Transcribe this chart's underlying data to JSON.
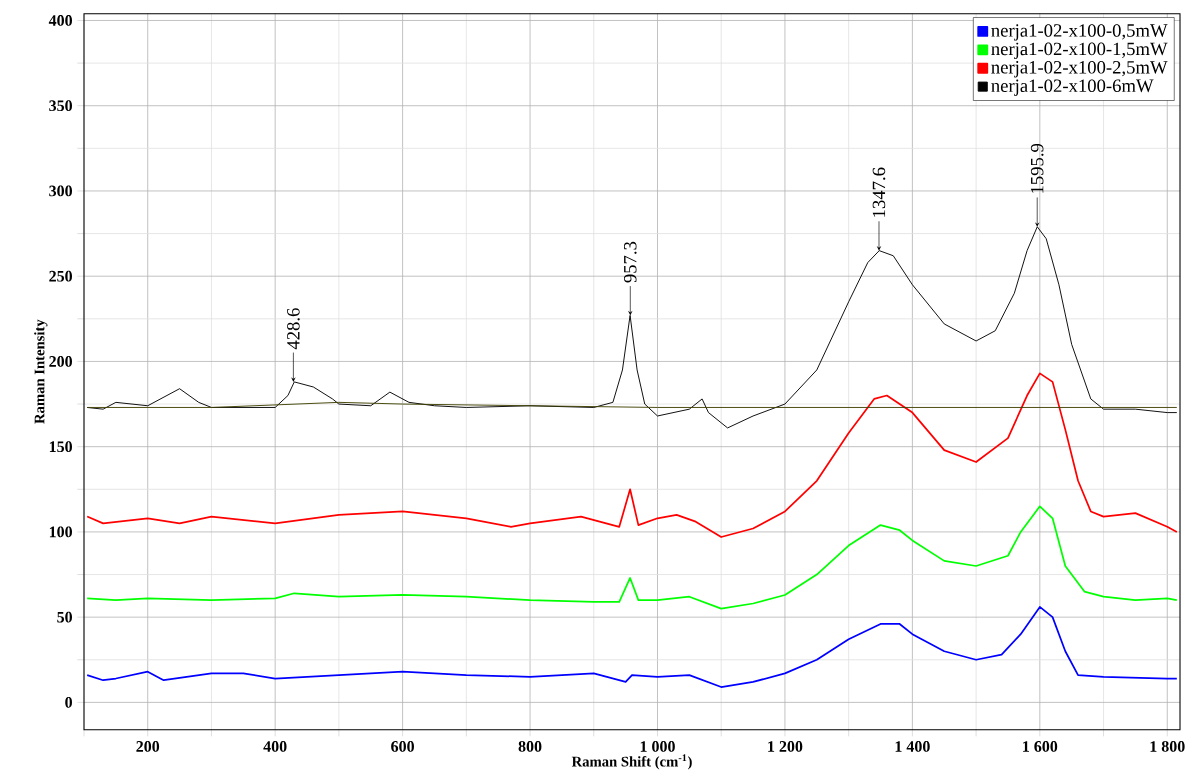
{
  "chart_data": {
    "type": "line",
    "xlabel": "Raman Shift (cm$^{-1}$)",
    "ylabel": "Raman Intensity",
    "xlim": [
      100,
      1820
    ],
    "ylim": [
      -16,
      404
    ],
    "xticks": [
      {
        "value": 100,
        "label": null
      },
      200,
      {
        "value": 300,
        "label": null
      },
      400,
      {
        "value": 500,
        "label": null
      },
      600,
      {
        "value": 700,
        "label": null
      },
      800,
      {
        "value": 900,
        "label": null
      },
      {
        "value": 1000,
        "label": "1 000"
      },
      {
        "value": 1100,
        "label": null
      },
      {
        "value": 1200,
        "label": "1 200"
      },
      {
        "value": 1300,
        "label": null
      },
      {
        "value": 1400,
        "label": "1 400"
      },
      {
        "value": 1500,
        "label": null
      },
      {
        "value": 1600,
        "label": "1 600"
      },
      {
        "value": 1700,
        "label": null
      },
      {
        "value": 1800,
        "label": "1 800"
      }
    ],
    "yticks": [
      0,
      {
        "value": 25,
        "label": null
      },
      50,
      {
        "value": 75,
        "label": null
      },
      100,
      {
        "value": 125,
        "label": null
      },
      150,
      {
        "value": 175,
        "label": null
      },
      200,
      {
        "value": 225,
        "label": null
      },
      250,
      {
        "value": 275,
        "label": null
      },
      300,
      {
        "value": 325,
        "label": null
      },
      350,
      {
        "value": 375,
        "label": null
      },
      400
    ],
    "grid": true,
    "legend": "top right",
    "series": [
      {
        "name": "nerja1-02-x100-0,5mW",
        "color": "#0000ff",
        "x": [
          105,
          130,
          150,
          200,
          225,
          300,
          350,
          400,
          450,
          500,
          550,
          600,
          700,
          800,
          900,
          950,
          960,
          1000,
          1050,
          1100,
          1150,
          1200,
          1250,
          1300,
          1350,
          1380,
          1400,
          1450,
          1500,
          1540,
          1570,
          1600,
          1620,
          1640,
          1660,
          1700,
          1800,
          1815
        ],
        "values": [
          16,
          13,
          14,
          18,
          13,
          17,
          17,
          14,
          15,
          16,
          17,
          18,
          16,
          15,
          17,
          12,
          16,
          15,
          16,
          9,
          12,
          17,
          25,
          37,
          46,
          46,
          40,
          30,
          25,
          28,
          40,
          56,
          50,
          30,
          16,
          15,
          14,
          14
        ]
      },
      {
        "name": "nerja1-02-x100-1,5mW",
        "color": "#00ff00",
        "x": [
          105,
          150,
          200,
          300,
          400,
          430,
          500,
          600,
          700,
          800,
          900,
          940,
          957,
          970,
          1000,
          1050,
          1100,
          1150,
          1200,
          1250,
          1300,
          1350,
          1380,
          1400,
          1450,
          1500,
          1550,
          1570,
          1600,
          1620,
          1640,
          1670,
          1700,
          1750,
          1800,
          1815
        ],
        "values": [
          61,
          60,
          61,
          60,
          61,
          64,
          62,
          63,
          62,
          60,
          59,
          59,
          73,
          60,
          60,
          62,
          55,
          58,
          63,
          75,
          92,
          104,
          101,
          95,
          83,
          80,
          86,
          100,
          115,
          108,
          80,
          65,
          62,
          60,
          61,
          60
        ]
      },
      {
        "name": "nerja1-02-x100-2,5mW",
        "color": "#ff0000",
        "x": [
          105,
          130,
          200,
          250,
          300,
          400,
          500,
          600,
          700,
          770,
          800,
          880,
          940,
          957,
          970,
          1000,
          1030,
          1060,
          1100,
          1150,
          1200,
          1250,
          1300,
          1340,
          1360,
          1400,
          1450,
          1500,
          1550,
          1580,
          1600,
          1620,
          1640,
          1660,
          1680,
          1700,
          1750,
          1800,
          1815
        ],
        "values": [
          109,
          105,
          108,
          105,
          109,
          105,
          110,
          112,
          108,
          103,
          105,
          109,
          103,
          125,
          104,
          108,
          110,
          106,
          97,
          102,
          112,
          130,
          158,
          178,
          180,
          170,
          148,
          141,
          155,
          180,
          193,
          188,
          160,
          130,
          112,
          109,
          111,
          103,
          100
        ]
      },
      {
        "name": "nerja1-02-x100-6mW",
        "color": "#000000",
        "x": [
          105,
          130,
          150,
          200,
          250,
          280,
          300,
          400,
          420,
          430,
          460,
          490,
          500,
          550,
          580,
          610,
          650,
          700,
          800,
          900,
          930,
          945,
          957,
          968,
          980,
          1000,
          1050,
          1070,
          1080,
          1110,
          1150,
          1200,
          1250,
          1300,
          1330,
          1348,
          1370,
          1400,
          1450,
          1500,
          1530,
          1560,
          1580,
          1596,
          1610,
          1630,
          1650,
          1680,
          1700,
          1750,
          1800,
          1815
        ],
        "values": [
          173,
          172,
          176,
          174,
          184,
          176,
          173,
          173,
          180,
          188,
          185,
          178,
          175,
          174,
          182,
          176,
          174,
          173,
          174,
          173,
          176,
          195,
          227,
          195,
          175,
          168,
          172,
          178,
          170,
          161,
          168,
          175,
          195,
          235,
          258,
          265,
          262,
          245,
          222,
          212,
          218,
          240,
          265,
          279,
          272,
          245,
          210,
          178,
          172,
          172,
          170,
          170
        ]
      },
      {
        "color": "#404000",
        "x": [
          105,
          300,
          500,
          600,
          800,
          1000,
          1815
        ],
        "values": [
          173,
          173,
          176,
          175,
          174,
          173,
          173
        ]
      }
    ],
    "annotations": [
      {
        "text": "428.6",
        "x": 428.6,
        "y": 188
      },
      {
        "text": "957.3",
        "x": 957.3,
        "y": 227
      },
      {
        "text": "1347.6",
        "x": 1347.6,
        "y": 265
      },
      {
        "text": "1595.9",
        "x": 1595.9,
        "y": 279
      }
    ]
  }
}
